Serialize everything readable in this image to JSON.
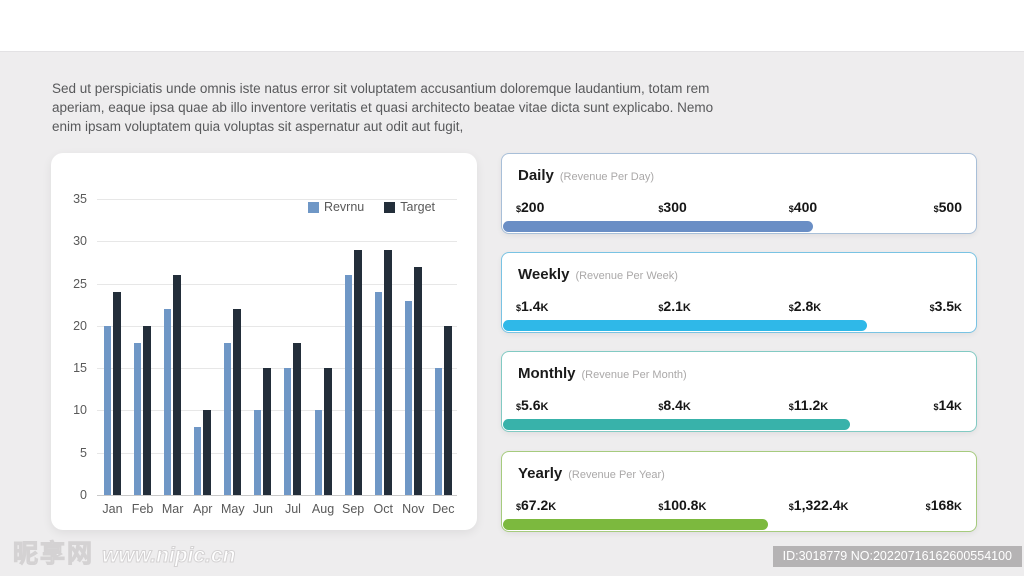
{
  "page": {
    "background": "#eeedee",
    "top_band_color": "#ffffff"
  },
  "intro_text": "Sed ut perspiciatis unde omnis iste natus error sit voluptatem accusantium doloremque laudantium, totam rem aperiam, eaque ipsa quae ab illo inventore veritatis et quasi architecto beatae vitae dicta sunt explicabo. Nemo enim ipsam voluptatem quia voluptas sit aspernatur aut odit aut fugit,",
  "chart_data": {
    "type": "bar",
    "title": "",
    "xlabel": "",
    "ylabel": "",
    "categories": [
      "Jan",
      "Feb",
      "Mar",
      "Apr",
      "May",
      "Jun",
      "Jul",
      "Aug",
      "Sep",
      "Oct",
      "Nov",
      "Dec"
    ],
    "series": [
      {
        "name": "Revrnu",
        "color": "#6f97c6",
        "values": [
          20,
          18,
          22,
          8,
          18,
          10,
          15,
          10,
          26,
          24,
          23,
          15
        ]
      },
      {
        "name": "Target",
        "color": "#232e3a",
        "values": [
          24,
          20,
          26,
          10,
          22,
          15,
          18,
          15,
          29,
          29,
          27,
          20
        ]
      }
    ],
    "ylim": [
      0,
      35
    ],
    "yticks": [
      0,
      5,
      10,
      15,
      20,
      25,
      30,
      35
    ],
    "grid": true,
    "legend_position": "top-right"
  },
  "cards": [
    {
      "title": "Daily",
      "subtitle": "(Revenue Per Day)",
      "fill_percent": 65.4,
      "fill_color": "#6a8ec5",
      "border_color": "#a8bfd8",
      "ticks": [
        {
          "currency": "$",
          "label": "200",
          "suffix": ""
        },
        {
          "currency": "$",
          "label": "300",
          "suffix": ""
        },
        {
          "currency": "$",
          "label": "400",
          "suffix": ""
        },
        {
          "currency": "$",
          "label": "500",
          "suffix": ""
        }
      ]
    },
    {
      "title": "Weekly",
      "subtitle": "(Revenue Per Week)",
      "fill_percent": 76.8,
      "fill_color": "#2fb8e8",
      "border_color": "#79c3e3",
      "ticks": [
        {
          "currency": "$",
          "label": "1.4",
          "suffix": "K"
        },
        {
          "currency": "$",
          "label": "2.1",
          "suffix": "K"
        },
        {
          "currency": "$",
          "label": "2.8",
          "suffix": "K"
        },
        {
          "currency": "$",
          "label": "3.5",
          "suffix": "K"
        }
      ]
    },
    {
      "title": "Monthly",
      "subtitle": "(Revenue Per Month)",
      "fill_percent": 73.2,
      "fill_color": "#38b2aa",
      "border_color": "#82cac3",
      "ticks": [
        {
          "currency": "$",
          "label": "5.6",
          "suffix": "K"
        },
        {
          "currency": "$",
          "label": "8.4",
          "suffix": "K"
        },
        {
          "currency": "$",
          "label": "11.2",
          "suffix": "K"
        },
        {
          "currency": "$",
          "label": "14",
          "suffix": "K"
        }
      ]
    },
    {
      "title": "Yearly",
      "subtitle": "(Revenue Per Year)",
      "fill_percent": 55.9,
      "fill_color": "#7cb93e",
      "border_color": "#a6cb7e",
      "ticks": [
        {
          "currency": "$",
          "label": "67.2",
          "suffix": "K"
        },
        {
          "currency": "$",
          "label": "100.8",
          "suffix": "K"
        },
        {
          "currency": "$",
          "label": "1,322.4",
          "suffix": "K"
        },
        {
          "currency": "$",
          "label": "168",
          "suffix": "K"
        }
      ]
    }
  ],
  "footer": {
    "watermark_cn": "昵享网",
    "watermark_url": "www.nipic.cn",
    "id_text": "ID:3018779 NO:20220716162600554100"
  }
}
